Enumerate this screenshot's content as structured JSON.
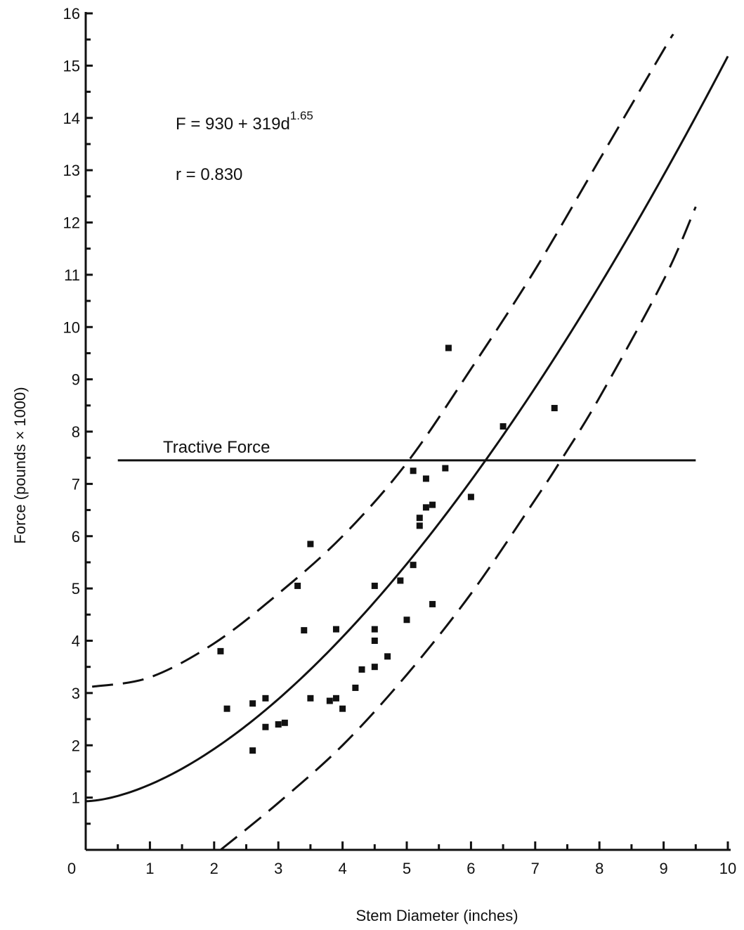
{
  "chart_data": {
    "type": "scatter",
    "title": "",
    "xlabel": "Stem Diameter (inches)",
    "ylabel": "Force (pounds × 1000)",
    "xlim": [
      0,
      10
    ],
    "ylim": [
      0,
      16
    ],
    "x_ticks": [
      "0",
      "1",
      "2",
      "3",
      "4",
      "5",
      "6",
      "7",
      "8",
      "9",
      "10"
    ],
    "y_ticks": [
      "1",
      "2",
      "3",
      "4",
      "5",
      "6",
      "7",
      "8",
      "9",
      "10",
      "11",
      "12",
      "13",
      "14",
      "15",
      "16"
    ],
    "grid": false,
    "legend": "none",
    "equation": {
      "main": "F = 930 + 319d",
      "exponent": "1.65"
    },
    "correlation": "r = 0.830",
    "reference_line": {
      "label": "Tractive Force",
      "y": 7.45,
      "x_range": [
        0.5,
        9.5
      ]
    },
    "fit_curve": {
      "intercept": 0.93,
      "coefficient": 0.319,
      "exponent": 1.65,
      "x_range": [
        0,
        10
      ]
    },
    "upper_band": {
      "style": "dashed",
      "x": [
        0.1,
        1.0,
        2.0,
        3.0,
        4.0,
        5.0,
        6.0,
        7.0,
        8.0,
        9.0,
        9.15
      ],
      "y": [
        3.12,
        3.3,
        3.95,
        4.9,
        6.0,
        7.4,
        9.2,
        11.1,
        13.2,
        15.3,
        15.6
      ]
    },
    "lower_band": {
      "style": "dashed",
      "x": [
        2.1,
        3.0,
        4.0,
        5.0,
        6.0,
        7.0,
        7.4,
        8.0,
        9.0,
        9.5
      ],
      "y": [
        0.0,
        0.9,
        2.0,
        3.35,
        4.9,
        6.7,
        7.45,
        8.65,
        10.9,
        12.3
      ]
    },
    "series": [
      {
        "marker": "square",
        "x": [
          2.1,
          2.2,
          2.6,
          2.6,
          2.8,
          2.8,
          3.0,
          3.1,
          3.3,
          3.4,
          3.5,
          3.5,
          3.8,
          3.9,
          3.9,
          4.0,
          4.2,
          4.3,
          4.5,
          4.5,
          4.5,
          4.5,
          4.7,
          4.9,
          5.0,
          5.1,
          5.1,
          5.2,
          5.2,
          5.3,
          5.3,
          5.4,
          5.4,
          5.6,
          5.65,
          6.0,
          6.5,
          7.3
        ],
        "y": [
          3.8,
          2.7,
          2.8,
          1.9,
          2.9,
          2.35,
          2.4,
          2.43,
          5.05,
          4.2,
          5.85,
          2.9,
          2.85,
          4.22,
          2.9,
          2.7,
          3.1,
          3.45,
          5.05,
          4.22,
          4.0,
          3.5,
          3.7,
          5.15,
          4.4,
          5.45,
          7.25,
          6.35,
          6.2,
          7.1,
          6.55,
          6.6,
          4.7,
          7.3,
          9.6,
          6.75,
          8.1,
          8.45
        ]
      }
    ]
  }
}
